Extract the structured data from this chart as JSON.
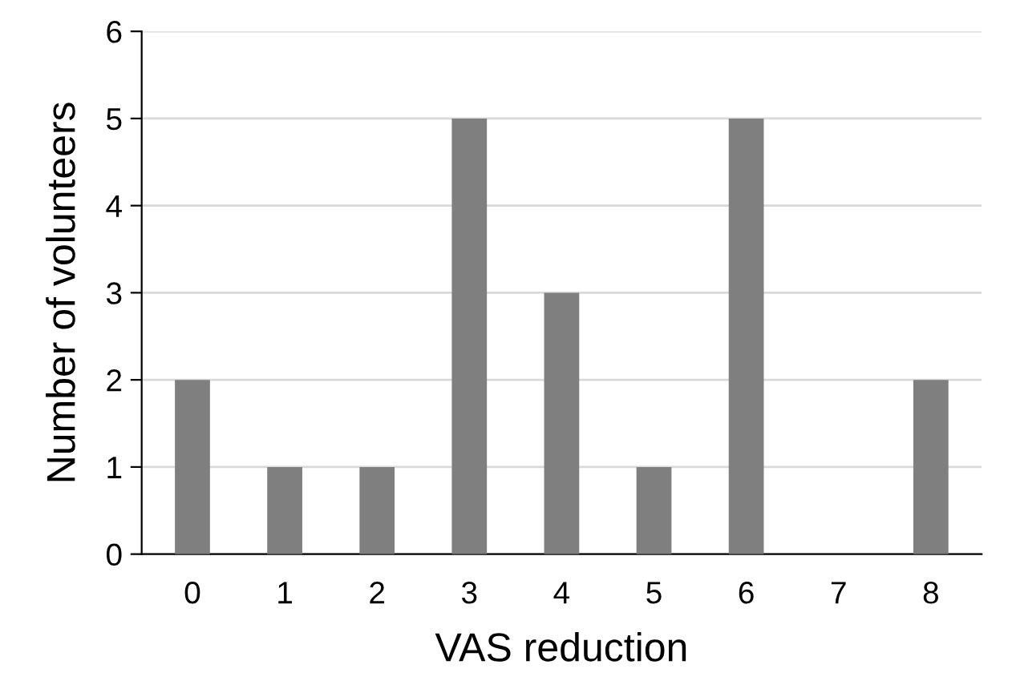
{
  "chart_data": {
    "type": "bar",
    "xlabel": "VAS reduction",
    "ylabel": "Number of volunteers",
    "categories": [
      "0",
      "1",
      "2",
      "3",
      "4",
      "5",
      "6",
      "7",
      "8"
    ],
    "values": [
      2,
      1,
      1,
      5,
      3,
      1,
      5,
      0,
      2
    ],
    "color": "#7f7f7f",
    "ylim": [
      0,
      6
    ],
    "yticks": [
      0,
      1,
      2,
      3,
      4,
      5,
      6
    ],
    "grid": "y"
  }
}
